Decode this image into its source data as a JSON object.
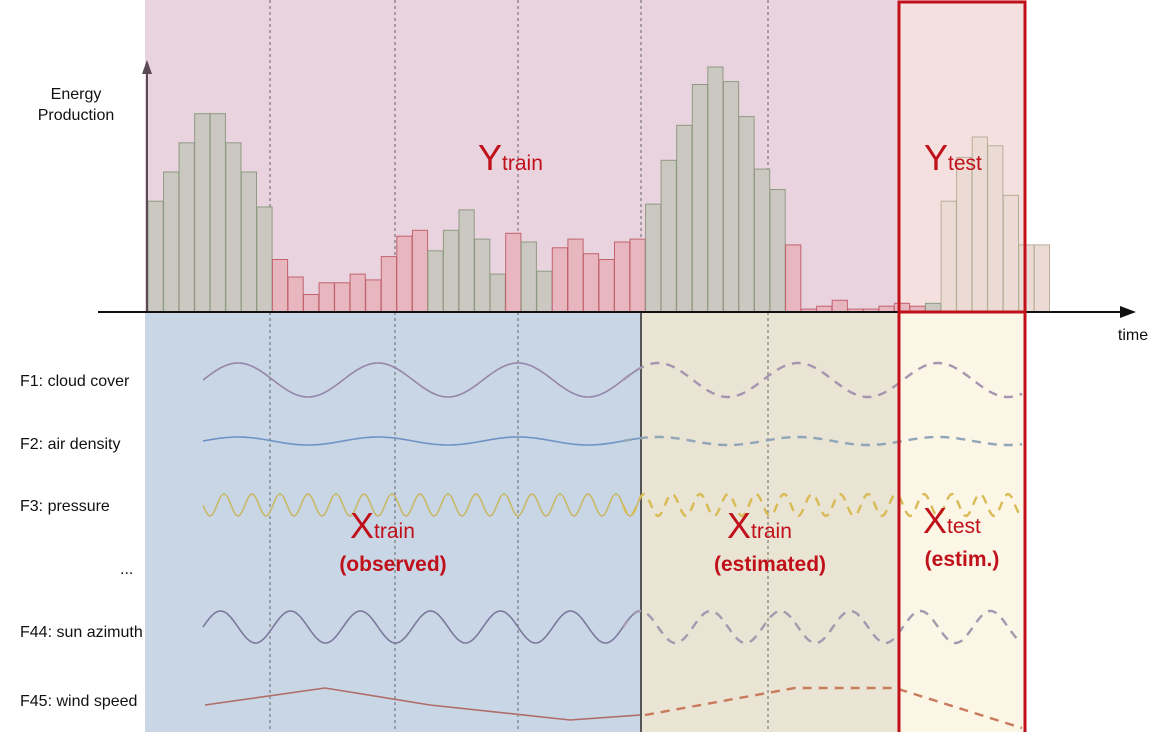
{
  "axes": {
    "y_label": [
      "Energy",
      "Production"
    ],
    "x_label": "time"
  },
  "features": [
    {
      "label": "F1: cloud cover",
      "color": "#9585a8"
    },
    {
      "label": "F2: air density",
      "color": "#6e93c4"
    },
    {
      "label": "F3: pressure",
      "color": "#c9b86a"
    },
    {
      "label": "...",
      "color": ""
    },
    {
      "label": "F44: sun azimuth",
      "color": "#7b7a9c"
    },
    {
      "label": "F45: wind speed",
      "color": "#b06c68"
    }
  ],
  "estimated_feature_colors": [
    "#a695b0",
    "#8fa6b8",
    "#d9bb55",
    "",
    "#a39ab0",
    "#c97a5c"
  ],
  "regions": {
    "y_train": {
      "main": "Y",
      "sub": "train"
    },
    "y_test": {
      "main": "Y",
      "sub": "test"
    },
    "x_train_observed": {
      "main": "X",
      "sub": "train",
      "note": "(observed)"
    },
    "x_train_estimated": {
      "main": "X",
      "sub": "train",
      "note": "(estimated)"
    },
    "x_test": {
      "main": "X",
      "sub": "test",
      "note": "(estim.)"
    }
  },
  "colors": {
    "y_band": "#e8d3df",
    "y_test_band": "#f5e0e0",
    "x_observed": "#c9d6e6",
    "x_estimated": "#e9e4d3",
    "x_test": "#fbf6e6",
    "highlight": "#c0101a",
    "bar_high": "#cbc8c2",
    "bar_low": "#e7b6bf"
  },
  "bars": [
    38,
    48,
    58,
    68,
    68,
    58,
    48,
    36,
    18,
    12,
    6,
    10,
    10,
    13,
    11,
    19,
    26,
    28,
    21,
    28,
    35,
    25,
    13,
    27,
    24,
    14,
    22,
    25,
    20,
    18,
    24,
    25,
    37,
    52,
    64,
    78,
    84,
    79,
    67,
    49,
    42,
    23,
    1,
    2,
    4,
    1,
    1,
    2,
    3,
    2,
    3,
    38,
    53,
    60,
    57,
    40,
    23,
    23
  ],
  "bars_low_indices": [
    8,
    9,
    10,
    11,
    12,
    13,
    14,
    15,
    16,
    17,
    23,
    26,
    27,
    28,
    29,
    30,
    31
  ],
  "bars_tiny_indices": [
    41,
    42,
    43,
    44,
    45,
    46,
    47,
    48,
    49
  ]
}
